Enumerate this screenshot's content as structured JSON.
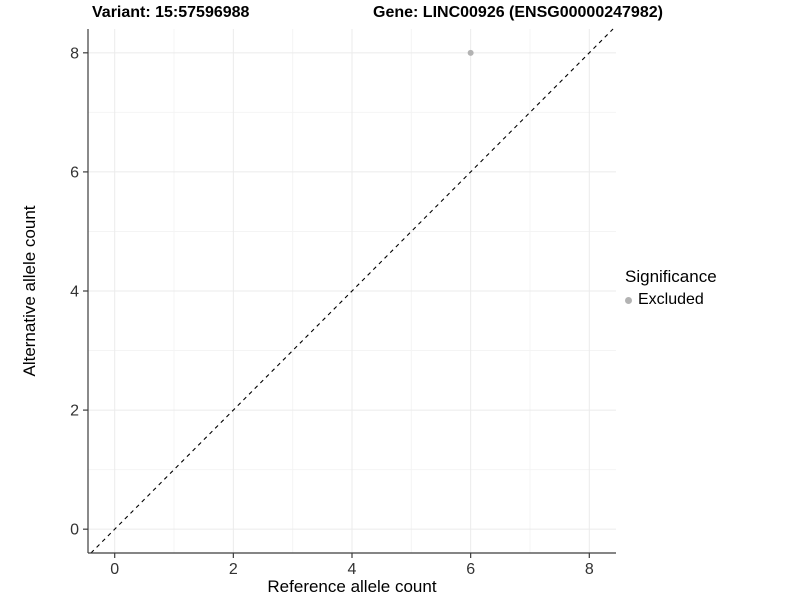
{
  "chart_data": {
    "type": "scatter",
    "title_left": "Variant: 15:57596988",
    "title_right": "Gene: LINC00926 (ENSG00000247982)",
    "xlabel": "Reference allele count",
    "ylabel": "Alternative allele count",
    "x_ticks": [
      0,
      2,
      4,
      6,
      8
    ],
    "y_ticks": [
      0,
      2,
      4,
      6,
      8
    ],
    "x_minor_ticks": [
      1,
      3,
      5,
      7
    ],
    "y_minor_ticks": [
      1,
      3,
      5,
      7
    ],
    "xlim": [
      -0.45,
      8.45
    ],
    "ylim": [
      -0.4,
      8.4
    ],
    "grid": true,
    "identity_line": {
      "style": "dashed",
      "color": "#000000",
      "from": -0.4,
      "to": 8.4
    },
    "series": [
      {
        "name": "Excluded",
        "color": "#b3b3b3",
        "points": [
          {
            "x": 6,
            "y": 8
          }
        ]
      }
    ],
    "legend": {
      "position": "right",
      "title": "Significance",
      "items": [
        {
          "label": "Excluded",
          "color": "#b3b3b3"
        }
      ]
    },
    "colors": {
      "background": "#ffffff",
      "grid_major": "#ebebeb",
      "grid_minor": "#f4f4f4",
      "axis_line": "#3c3c3c",
      "tick_label": "#333333"
    }
  }
}
